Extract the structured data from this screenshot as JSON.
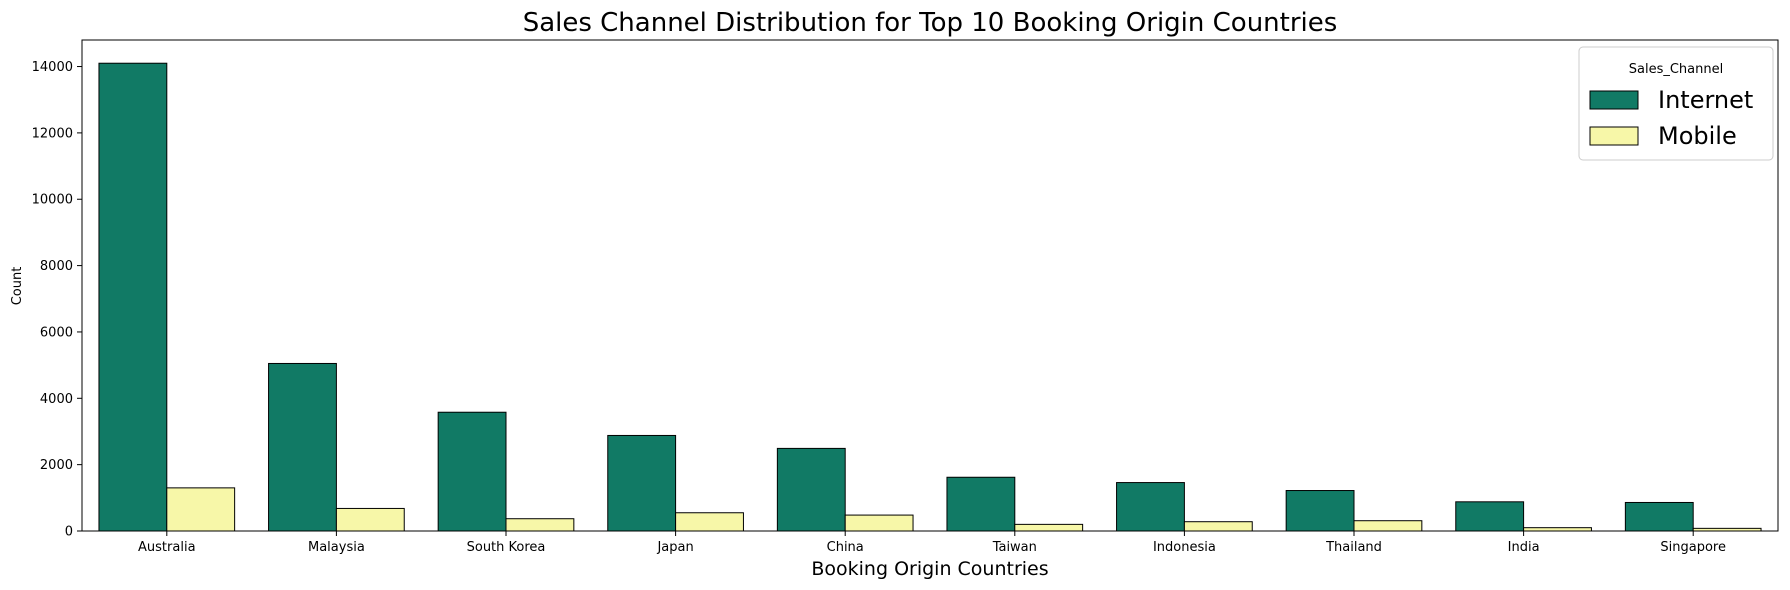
{
  "chart_data": {
    "type": "bar",
    "title": "Sales Channel Distribution for Top 10 Booking Origin Countries",
    "xlabel": "Booking Origin Countries",
    "ylabel": "Count",
    "categories": [
      "Australia",
      "Malaysia",
      "South Korea",
      "Japan",
      "China",
      "Taiwan",
      "Indonesia",
      "Thailand",
      "India",
      "Singapore"
    ],
    "series": [
      {
        "name": "Internet",
        "color": "#117a65",
        "values": [
          14100,
          5050,
          3580,
          2880,
          2490,
          1620,
          1460,
          1220,
          880,
          860
        ]
      },
      {
        "name": "Mobile",
        "color": "#f7f7a8",
        "values": [
          1300,
          680,
          370,
          550,
          480,
          200,
          280,
          310,
          100,
          80
        ]
      }
    ],
    "ylim": [
      0,
      14800
    ],
    "yticks": [
      0,
      2000,
      4000,
      6000,
      8000,
      10000,
      12000,
      14000
    ],
    "legend": {
      "title": "Sales_Channel",
      "placement": "top-right"
    },
    "grid": false
  }
}
